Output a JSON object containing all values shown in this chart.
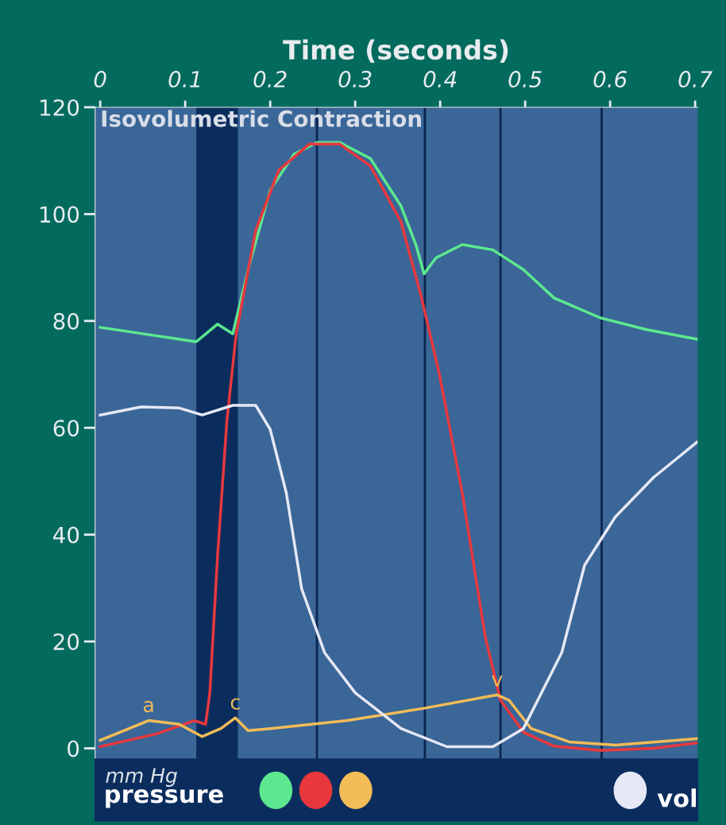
{
  "chart_data": {
    "type": "line",
    "xlabel": "Time (seconds)",
    "xlim": [
      -0.006,
      0.703
    ],
    "ylim": [
      -2,
      120
    ],
    "xticks": [
      0,
      0.1,
      0.2,
      0.3,
      0.4,
      0.5,
      0.6,
      0.7
    ],
    "yticks": [
      0,
      20,
      40,
      60,
      80,
      100,
      120
    ],
    "grid": false,
    "legend": false,
    "marker": "none",
    "line_style": "solid",
    "series": [
      {
        "color": "#5de88f",
        "x": [
          0,
          0.113,
          0.138,
          0.156,
          0.174,
          0.2,
          0.228,
          0.255,
          0.282,
          0.318,
          0.354,
          0.372,
          0.381,
          0.395,
          0.426,
          0.462,
          0.498,
          0.534,
          0.588,
          0.642,
          0.702
        ],
        "values": [
          78.8,
          76.1,
          79.4,
          77.6,
          89.6,
          104.5,
          111.2,
          113.4,
          113.4,
          110.4,
          101.5,
          94,
          88.8,
          91.8,
          94.3,
          93.3,
          89.6,
          84.3,
          80.6,
          78.4,
          76.6
        ]
      },
      {
        "color": "#e8383d",
        "x": [
          0,
          0.066,
          0.111,
          0.124,
          0.129,
          0.138,
          0.149,
          0.16,
          0.183,
          0.21,
          0.246,
          0.282,
          0.318,
          0.354,
          0.377,
          0.399,
          0.426,
          0.453,
          0.471,
          0.498,
          0.534,
          0.588,
          0.651,
          0.702
        ],
        "values": [
          0.3,
          2.7,
          5.2,
          4.5,
          10.4,
          35.8,
          61.2,
          77.6,
          97,
          108.2,
          113.1,
          113.1,
          109,
          98.5,
          85,
          70.1,
          47.8,
          20.9,
          9,
          3,
          0.4,
          -0.4,
          0,
          1
        ]
      },
      {
        "color": "#f2bc57",
        "x": [
          0,
          0.057,
          0.093,
          0.12,
          0.142,
          0.159,
          0.174,
          0.2,
          0.291,
          0.381,
          0.467,
          0.481,
          0.507,
          0.552,
          0.606,
          0.702
        ],
        "values": [
          1.5,
          5.2,
          4.5,
          2.2,
          3.7,
          5.7,
          3.3,
          3.7,
          5.2,
          7.5,
          10,
          9,
          3.7,
          1.2,
          0.6,
          1.8
        ]
      },
      {
        "color": "#e6e8f5",
        "x": [
          0,
          0.048,
          0.093,
          0.12,
          0.156,
          0.183,
          0.2,
          0.219,
          0.237,
          0.264,
          0.3,
          0.354,
          0.408,
          0.462,
          0.498,
          0.543,
          0.57,
          0.606,
          0.651,
          0.702
        ],
        "values": [
          62.4,
          63.9,
          63.7,
          62.4,
          64.2,
          64.2,
          59.7,
          47.8,
          29.9,
          17.9,
          10.4,
          3.7,
          0.3,
          0.3,
          3.7,
          17.9,
          34.3,
          43.3,
          50.7,
          57.3
        ]
      }
    ],
    "bands": [
      {
        "axis": "x",
        "from": 0.113,
        "to": 0.162,
        "label": "Isovolumetric Contraction",
        "color": "#0b2d5e"
      }
    ],
    "ref_lines": [
      {
        "axis": "x",
        "value": 0.255,
        "color": "#0b2550"
      },
      {
        "axis": "x",
        "value": 0.382,
        "color": "#0b2550"
      },
      {
        "axis": "x",
        "value": 0.471,
        "color": "#0b2550"
      },
      {
        "axis": "x",
        "value": 0.59,
        "color": "#0b2550"
      }
    ],
    "annotations": [
      {
        "text": "a",
        "x": 0.057,
        "y": 5.2
      },
      {
        "text": "c",
        "x": 0.159,
        "y": 5.7
      },
      {
        "text": "v",
        "x": 0.467,
        "y": 10
      },
      "mm Hg",
      "pressure",
      "vol"
    ]
  }
}
